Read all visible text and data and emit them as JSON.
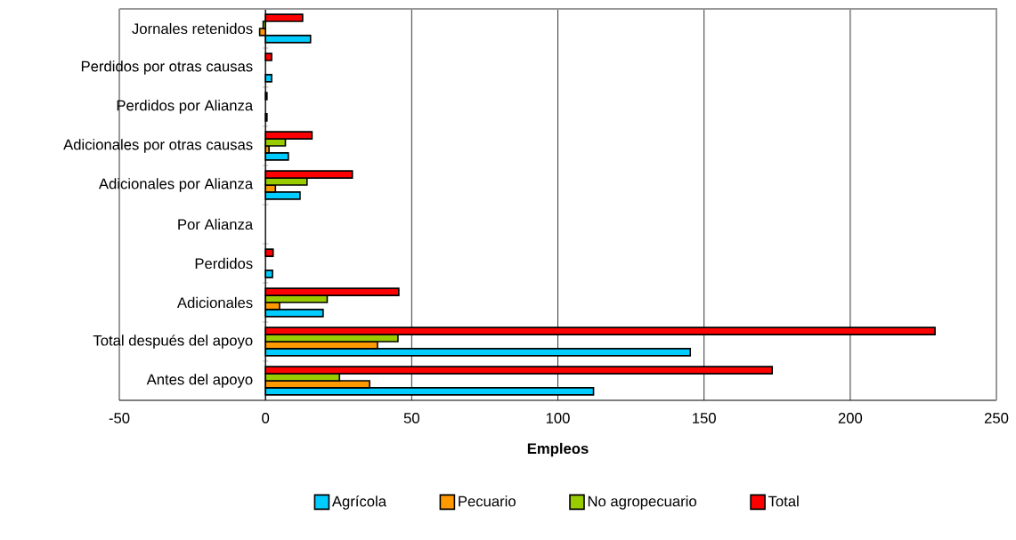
{
  "chart_data": {
    "type": "bar",
    "orientation": "horizontal",
    "xlabel": "Empleos",
    "categories": [
      "Jornales retenidos",
      "Perdidos por otras causas",
      "Perdidos por Alianza",
      "Adicionales por otras causas",
      "Adicionales por Alianza",
      "Por Alianza",
      "Perdidos",
      "Adicionales",
      "Total después del apoyo",
      "Antes del apoyo"
    ],
    "series": [
      {
        "name": "Agrícola",
        "color": "#00ccff",
        "values": [
          15.4,
          2.1,
          0.5,
          7.8,
          11.8,
          null,
          2.4,
          19.7,
          145.3,
          112.2
        ]
      },
      {
        "name": "Pecuario",
        "color": "#ff9900",
        "values": [
          -2.0,
          null,
          null,
          1.2,
          3.4,
          null,
          null,
          4.8,
          38.3,
          35.6
        ]
      },
      {
        "name": "No agropecuario",
        "color": "#99cc00",
        "values": [
          -0.8,
          null,
          null,
          6.8,
          14.2,
          null,
          null,
          21.1,
          45.3,
          25.3
        ]
      },
      {
        "name": "Total",
        "color": "#ff0000",
        "values": [
          12.7,
          2.1,
          0.5,
          15.9,
          29.7,
          null,
          2.6,
          45.6,
          229.0,
          173.3
        ]
      }
    ],
    "xlim": [
      -50,
      250
    ],
    "xticks": [
      -50,
      0,
      50,
      100,
      150,
      200,
      250
    ],
    "grid": "x",
    "legend": "bottom"
  }
}
